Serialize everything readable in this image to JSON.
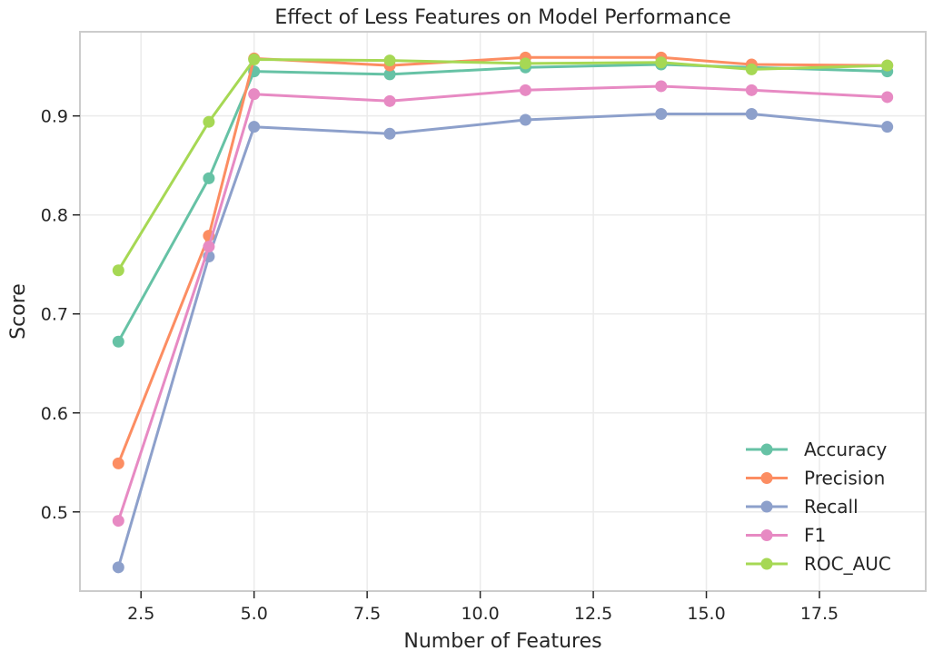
{
  "chart_data": {
    "type": "line",
    "title": "Effect of Less Features on Model Performance",
    "xlabel": "Number of Features",
    "ylabel": "Score",
    "x": [
      2,
      4,
      5,
      8,
      11,
      14,
      16,
      19
    ],
    "xlim": [
      1.15,
      19.85
    ],
    "ylim": [
      0.42,
      0.985
    ],
    "xticks": [
      2.5,
      5.0,
      7.5,
      10.0,
      12.5,
      15.0,
      17.5
    ],
    "xtick_labels": [
      "2.5",
      "5.0",
      "7.5",
      "10.0",
      "12.5",
      "15.0",
      "17.5"
    ],
    "yticks": [
      0.5,
      0.6,
      0.7,
      0.8,
      0.9
    ],
    "ytick_labels": [
      "0.5",
      "0.6",
      "0.7",
      "0.8",
      "0.9"
    ],
    "grid": true,
    "legend_position": "lower-right",
    "series": [
      {
        "name": "Accuracy",
        "color": "#66c2a5",
        "values": [
          0.672,
          0.837,
          0.945,
          0.942,
          0.949,
          0.952,
          0.949,
          0.945
        ]
      },
      {
        "name": "Precision",
        "color": "#fc8d62",
        "values": [
          0.549,
          0.779,
          0.958,
          0.951,
          0.959,
          0.959,
          0.952,
          0.951
        ]
      },
      {
        "name": "Recall",
        "color": "#8da0cb",
        "values": [
          0.444,
          0.758,
          0.889,
          0.882,
          0.896,
          0.902,
          0.902,
          0.889
        ]
      },
      {
        "name": "F1",
        "color": "#e78ac3",
        "values": [
          0.491,
          0.768,
          0.922,
          0.915,
          0.926,
          0.93,
          0.926,
          0.919
        ]
      },
      {
        "name": "ROC_AUC",
        "color": "#a6d854",
        "values": [
          0.744,
          0.894,
          0.957,
          0.956,
          0.953,
          0.954,
          0.947,
          0.951
        ]
      }
    ]
  }
}
